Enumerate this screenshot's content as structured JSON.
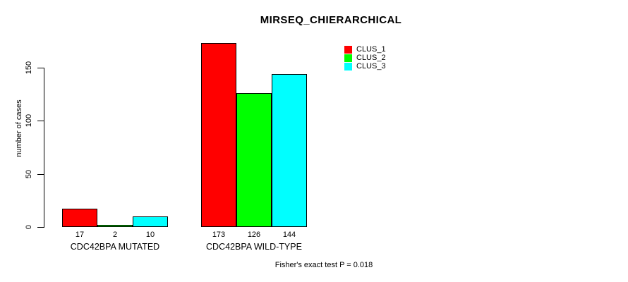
{
  "title": "MIRSEQ_CHIERARCHICAL",
  "footer": "Fisher's exact test P = 0.018",
  "chart_data": {
    "type": "bar",
    "categories": [
      "CDC42BPA MUTATED",
      "CDC42BPA WILD-TYPE"
    ],
    "series": [
      {
        "name": "CLUS_1",
        "color": "#ff0000",
        "values": [
          17,
          173
        ]
      },
      {
        "name": "CLUS_2",
        "color": "#00ff00",
        "values": [
          2,
          126
        ]
      },
      {
        "name": "CLUS_3",
        "color": "#00ffff",
        "values": [
          10,
          144
        ]
      }
    ],
    "ylabel": "number of cases",
    "xlabel": "",
    "yticks": [
      0,
      50,
      100,
      150
    ],
    "ylim": [
      0,
      180
    ],
    "grid": false,
    "legend_position": "top-right",
    "bar_value_labels": true,
    "bar_border_color": "#000000"
  }
}
